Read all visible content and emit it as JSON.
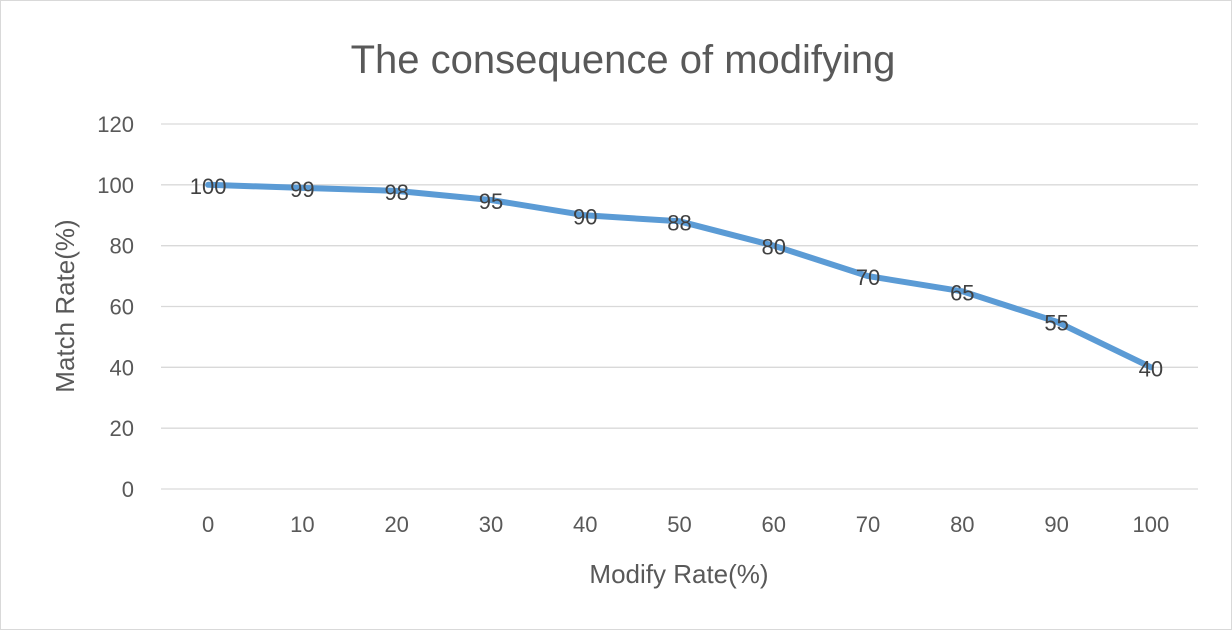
{
  "chart_data": {
    "type": "line",
    "title": "The consequence of modifying",
    "xlabel": "Modify Rate(%)",
    "ylabel": "Match Rate(%)",
    "x": [
      "0",
      "10",
      "20",
      "30",
      "40",
      "50",
      "60",
      "70",
      "80",
      "90",
      "100"
    ],
    "series": [
      {
        "values": [
          100,
          99,
          98,
          95,
          90,
          88,
          80,
          70,
          65,
          55,
          40
        ]
      }
    ],
    "ylim": [
      0,
      120
    ],
    "yticks": [
      "0",
      "20",
      "40",
      "60",
      "80",
      "100",
      "120"
    ],
    "grid": true,
    "data_labels": true,
    "colors": {
      "series": "#5b9bd5",
      "grid": "#d9d9d9",
      "text": "#595959"
    }
  }
}
